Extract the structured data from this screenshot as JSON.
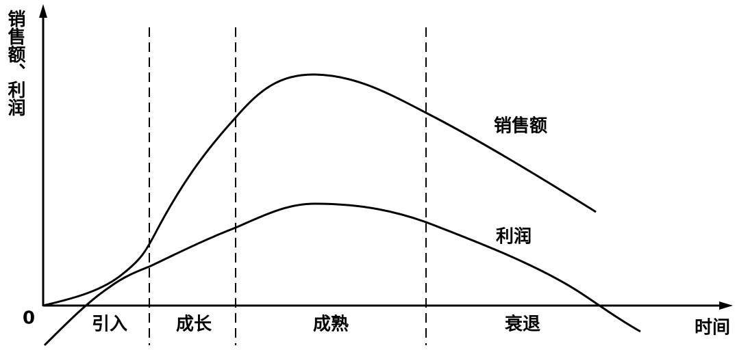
{
  "axes": {
    "y_label": "销售额、利润",
    "x_label": "时间",
    "origin": "0"
  },
  "stages": [
    "引入",
    "成长",
    "成熟",
    "衰退"
  ],
  "curves": [
    "销售额",
    "利润"
  ]
}
